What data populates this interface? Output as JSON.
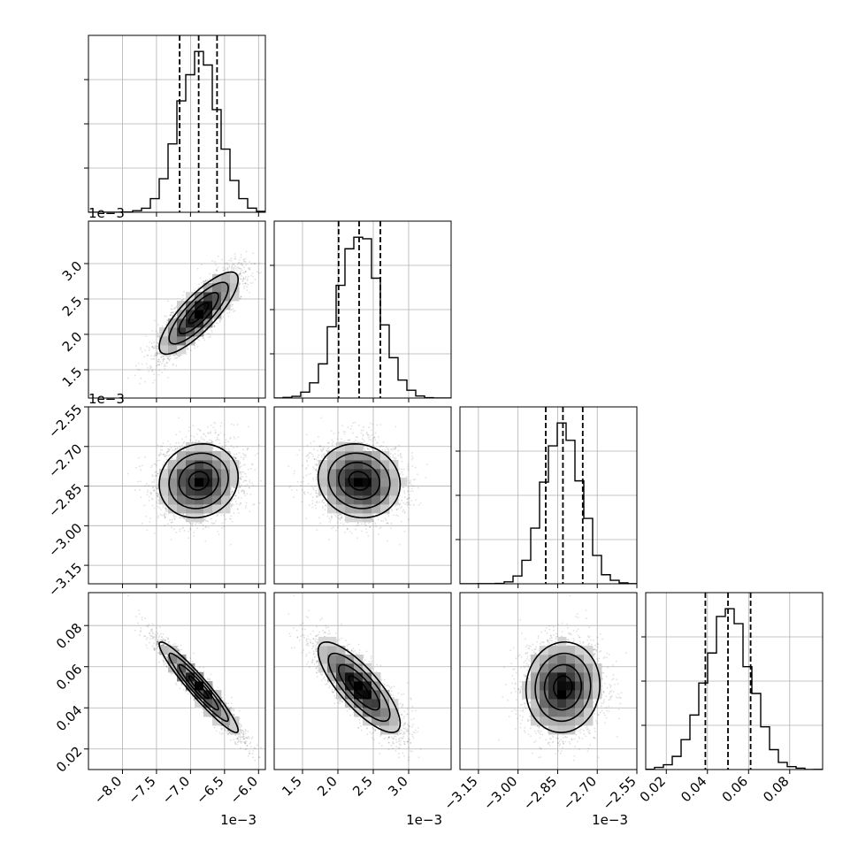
{
  "chart_data": {
    "type": "corner",
    "title": "",
    "parameters": [
      {
        "name": "",
        "range": [
          -0.0085,
          -0.0059
        ],
        "ticks": [
          -0.008,
          -0.0075,
          -0.007,
          -0.0065,
          -0.006
        ],
        "tick_labels": [
          "−8.0",
          "−7.5",
          "−7.0",
          "−6.5",
          "−6.0"
        ],
        "offset_text": "1e−3",
        "quantiles": [
          -0.00716,
          -0.00688,
          -0.00661
        ],
        "mean": -0.00688,
        "sigma": 0.00029
      },
      {
        "name": "",
        "range": [
          0.0011,
          0.0036
        ],
        "ticks": [
          0.0015,
          0.002,
          0.0025,
          0.003
        ],
        "tick_labels": [
          "1.5",
          "2.0",
          "2.5",
          "3.0"
        ],
        "offset_text": "1e−3",
        "quantiles": [
          0.00201,
          0.0023,
          0.0026
        ],
        "mean": 0.0023,
        "sigma": 0.00029
      },
      {
        "name": "",
        "range": [
          -0.00322,
          -0.00255
        ],
        "ticks": [
          -0.00315,
          -0.003,
          -0.00285,
          -0.0027,
          -0.00255
        ],
        "tick_labels": [
          "−3.15",
          "−3.00",
          "−2.85",
          "−2.70",
          "−2.55"
        ],
        "offset_text": "1e−3",
        "quantiles": [
          -0.002895,
          -0.00283,
          -0.002755
        ],
        "mean": -0.00283,
        "sigma": 7e-05
      },
      {
        "name": "",
        "range": [
          0.01,
          0.096
        ],
        "ticks": [
          0.02,
          0.04,
          0.06,
          0.08
        ],
        "tick_labels": [
          "0.02",
          "0.04",
          "0.06",
          "0.08"
        ],
        "offset_text": "",
        "quantiles": [
          0.039,
          0.05,
          0.061
        ],
        "mean": 0.05,
        "sigma": 0.011
      }
    ],
    "correlations": [
      [
        1.0,
        0.82,
        0.1,
        -0.95
      ],
      [
        0.82,
        1.0,
        -0.1,
        -0.8
      ],
      [
        0.1,
        -0.1,
        1.0,
        0.05
      ],
      [
        -0.95,
        -0.8,
        0.05,
        1.0
      ]
    ],
    "grid": true,
    "contour_levels": 3,
    "samples": 8000
  }
}
